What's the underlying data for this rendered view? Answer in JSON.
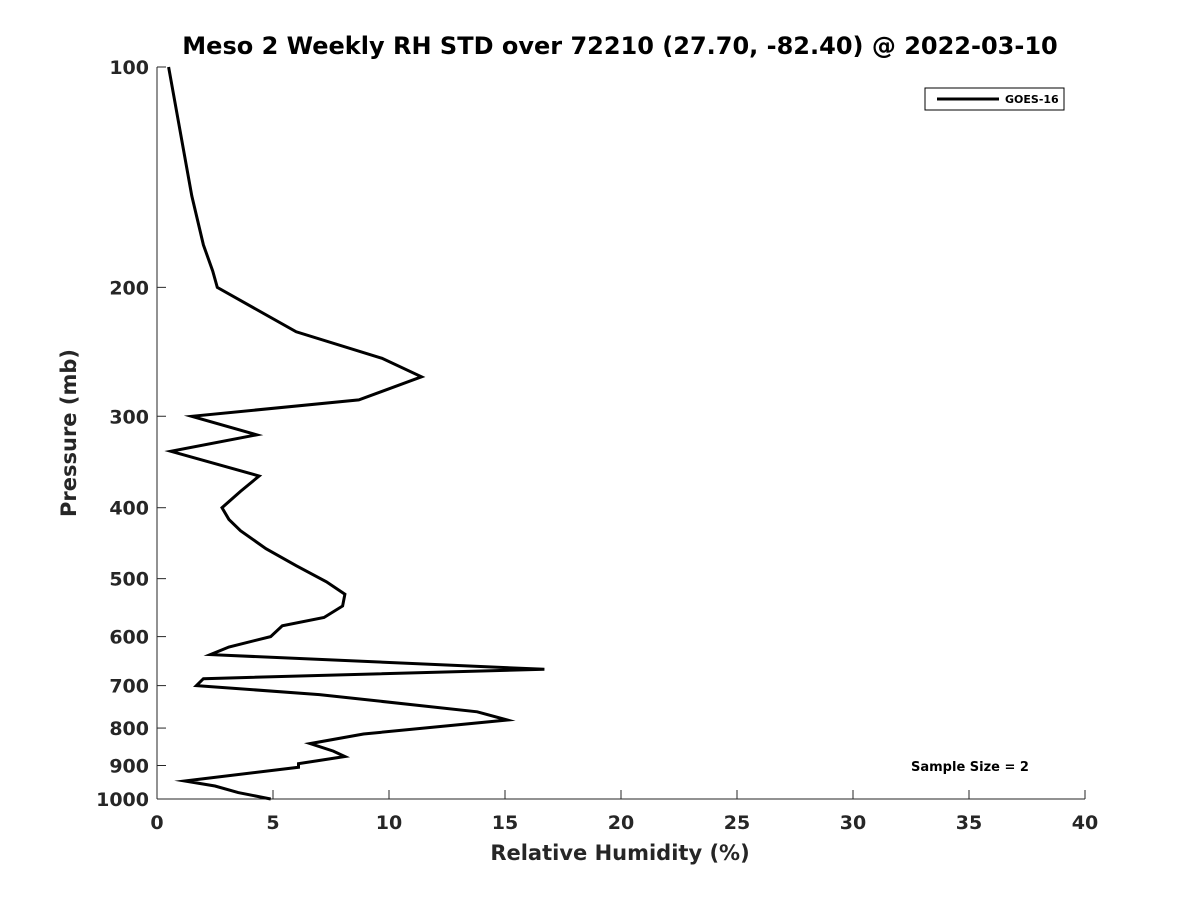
{
  "chart_data": {
    "type": "line",
    "title": "Meso 2 Weekly RH STD over 72210 (27.70, -82.40) @ 2022-03-10",
    "xlabel": "Relative Humidity (%)",
    "ylabel": "Pressure (mb)",
    "xlim": [
      0,
      40
    ],
    "ylim": [
      100,
      1000
    ],
    "yscale": "log",
    "y_reversed": true,
    "x_ticks": [
      0,
      5,
      10,
      15,
      20,
      25,
      30,
      35,
      40
    ],
    "y_ticks": [
      100,
      200,
      300,
      400,
      500,
      600,
      700,
      800,
      900,
      1000
    ],
    "grid": false,
    "legend_position": "top-right",
    "series": [
      {
        "name": "GOES-16",
        "color": "#000000",
        "x": [
          0.5,
          1.5,
          2.0,
          2.4,
          2.6,
          6.0,
          9.7,
          11.4,
          8.7,
          1.5,
          4.3,
          0.6,
          4.4,
          3.6,
          2.8,
          3.1,
          3.6,
          4.7,
          6.0,
          7.3,
          8.1,
          8.0,
          7.2,
          5.4,
          4.9,
          3.1,
          2.3,
          16.7,
          2.0,
          1.7,
          7.0,
          13.8,
          15.1,
          8.9,
          6.6,
          7.6,
          8.1,
          6.1,
          6.1,
          1.2,
          2.5,
          3.5,
          4.9
        ],
        "y": [
          100,
          150,
          175,
          190,
          200,
          230,
          250,
          265,
          285,
          300,
          318,
          335,
          362,
          380,
          400,
          415,
          430,
          455,
          480,
          505,
          525,
          545,
          565,
          580,
          600,
          620,
          635,
          665,
          685,
          700,
          720,
          760,
          780,
          815,
          840,
          860,
          875,
          895,
          905,
          945,
          960,
          980,
          1000
        ]
      }
    ],
    "annotations": [
      "Sample Size = 2"
    ]
  }
}
